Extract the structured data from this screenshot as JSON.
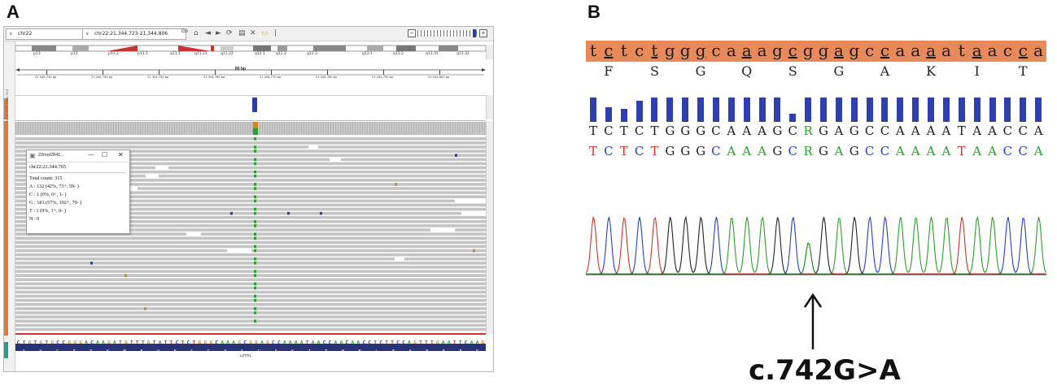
{
  "panels": {
    "a": "A",
    "b": "B"
  },
  "igv": {
    "genome_select": "chr22",
    "locus_box": "chr22:21,344,723-21,344,806",
    "go_label": "Go",
    "toolbar_icons": [
      "home-icon",
      "back-icon",
      "forward-icon",
      "refresh-icon",
      "ruler-icon",
      "close-icon",
      "comment-icon",
      "divider-icon"
    ],
    "zoom_minus": "−",
    "zoom_plus": "+",
    "left_strip_label": "DATA TYPE DATA FILE",
    "ideogram_bands": [
      "p13",
      "p12",
      "p11.2",
      "p11.1",
      "q11.1",
      "q11.21",
      "q11.22",
      "q12.1",
      "q12.2",
      "q12.3",
      "q13.1",
      "q13.2",
      "q13.31",
      "q13.32"
    ],
    "ruler_span": "85 bp",
    "ruler_ticks": [
      "21,344,730 bp",
      "21,344,740 bp",
      "21,344,750 bp",
      "21,344,760 bp",
      "21,344,770 bp",
      "21,344,780 bp",
      "21,344,790 bp",
      "21,344,800 bp"
    ],
    "read_count_label": "0 - 315",
    "popup": {
      "title": "22mol2841...",
      "minimize": "—",
      "maximize": "☐",
      "close": "✕",
      "locus": "chr22:21.344.765",
      "lines": [
        "Total count: 315",
        "A : 132 (42%, 73+, 59- )",
        "C : 1 (0%, 0+, 1- )",
        "G : 181 (57%, 102+, 79- )",
        "T : 1 (0%, 1+, 0- )",
        "N : 0"
      ]
    },
    "reference_sequence": "CTGTGTGCCGGGACAAGATGTTTGTATTCTCTGGGCAAAGCGGAGCCAAAATAACCAACAACCTCTTCCAGTTTGAATTCAAG",
    "amino_acids": [
      "A",
      "V",
      "C",
      "R",
      "D",
      "K",
      "M",
      "F",
      "V",
      "F",
      "S",
      "G",
      "Q",
      "S",
      "G",
      "A",
      "K",
      "I",
      "T",
      "N",
      "N",
      "L",
      "F",
      "Q",
      "F",
      "E",
      "F",
      "K"
    ],
    "gene_label": "LZTR1",
    "colors": {
      "A": "#2aa02a",
      "C": "#2440c8",
      "G": "#d2891c",
      "T": "#d0342c",
      "read": "#c4c4c4",
      "amino_bg": "#2a3277"
    }
  },
  "chromatogram": {
    "header_sequence": "tctctgggcaaagcggagccaaaataacca",
    "header_underlined_index": [
      1,
      4,
      7,
      10,
      13,
      16,
      19,
      22,
      25,
      28
    ],
    "amino_acids": [
      "F",
      "S",
      "G",
      "Q",
      "S",
      "G",
      "A",
      "K",
      "I",
      "T"
    ],
    "quality": [
      0.95,
      0.55,
      0.5,
      0.8,
      0.95,
      0.95,
      0.95,
      0.95,
      0.95,
      0.95,
      0.95,
      0.95,
      0.95,
      0.3,
      0.95,
      0.95,
      0.95,
      0.95,
      0.95,
      0.95,
      0.95,
      0.95,
      0.95,
      0.95,
      0.95,
      0.95,
      0.95,
      0.95,
      0.95,
      0.95
    ],
    "called_sequence": "TCTCTGGGCAAAGCRGAGCCAAAATAACCA",
    "reference_sequence": "TCTCTGGGCAAAGCRGAGCCAAAATAACCA",
    "mutation_label": "c.742G>A",
    "colors": {
      "A": "#2aa02a",
      "C": "#2440c8",
      "G": "#222222",
      "T": "#d0342c",
      "R": "#2aa02a",
      "header_bg": "#e8895a",
      "quality": "#2f3fb0"
    }
  }
}
